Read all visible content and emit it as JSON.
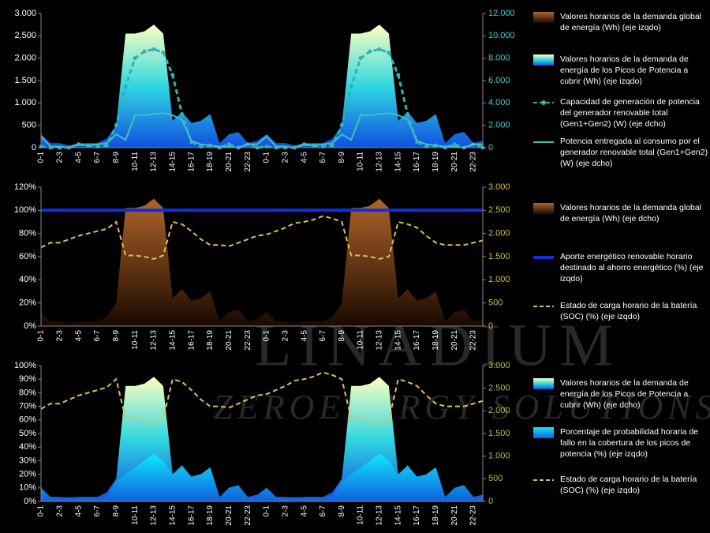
{
  "watermark": {
    "brand": "LINADIUM",
    "tagline": "ZEROENERGY SOLUTIONS"
  },
  "chart_data": [
    {
      "type": "combo",
      "categories": [
        "0-1",
        null,
        "2-3",
        null,
        "4-5",
        null,
        "6-7",
        null,
        "8-9",
        null,
        "10-11",
        null,
        "12-13",
        null,
        "14-15",
        null,
        "16-17",
        null,
        "18-19",
        null,
        "20-21",
        null,
        "22-23",
        null,
        "0-1",
        null,
        "2-3",
        null,
        "4-5",
        null,
        "6-7",
        null,
        "8-9",
        null,
        "10-11",
        null,
        "12-13",
        null,
        "14-15",
        null,
        "16-17",
        null,
        "18-19",
        null,
        "20-21",
        null,
        "22-23",
        null
      ],
      "ylim": [
        0,
        3000
      ],
      "yticks": [
        0,
        500,
        {
          "value": 1000,
          "label": "1.000"
        },
        {
          "value": 1500,
          "label": "1.500"
        },
        {
          "value": 2000,
          "label": "2.000"
        },
        {
          "value": 2500,
          "label": "2.500"
        },
        {
          "value": 3000,
          "label": "3.000"
        }
      ],
      "y2lim": [
        0,
        12000
      ],
      "y2ticks": [
        0,
        {
          "value": 2000,
          "label": "2.000"
        },
        {
          "value": 4000,
          "label": "4.000"
        },
        {
          "value": 6000,
          "label": "6.000"
        },
        {
          "value": 8000,
          "label": "8.000"
        },
        {
          "value": 10000,
          "label": "10.000"
        },
        {
          "value": 12000,
          "label": "12.000"
        }
      ],
      "y2_tick_color": "#40d0d0",
      "series": [
        {
          "name": "Valores horarios de la demanda global de energía (Wh)    (eje izqdo)",
          "mark": "area",
          "color": "#8a4a18",
          "gradient": [
            "#b0642a",
            "#1a0a00"
          ],
          "axis": "y",
          "values": [
            300,
            100,
            100,
            50,
            100,
            100,
            100,
            200,
            500,
            2550,
            2550,
            2600,
            2750,
            2550,
            600,
            800,
            550,
            600,
            750,
            100,
            300,
            350,
            100,
            150,
            300,
            100,
            100,
            50,
            100,
            100,
            100,
            200,
            500,
            2550,
            2550,
            2600,
            2750,
            2550,
            600,
            800,
            550,
            600,
            750,
            100,
            300,
            350,
            100,
            150
          ]
        },
        {
          "name": "Valores horarios de la demanda de energía de los Picos de Potencia a cubrir  (Wh)    (eje izqdo)",
          "mark": "area",
          "color": "#ffffc0",
          "gradient": [
            "#ffffc0",
            "#30d8e0",
            "#1050e0"
          ],
          "axis": "y",
          "values": [
            300,
            100,
            100,
            50,
            100,
            100,
            100,
            200,
            500,
            2550,
            2550,
            2600,
            2750,
            2550,
            600,
            800,
            550,
            600,
            750,
            100,
            300,
            350,
            100,
            150,
            300,
            100,
            100,
            50,
            100,
            100,
            100,
            200,
            500,
            2550,
            2550,
            2600,
            2750,
            2550,
            600,
            800,
            550,
            600,
            750,
            100,
            300,
            350,
            100,
            150
          ]
        },
        {
          "name": "Capacidad de generación de potencia del generador renovable total (Gen1+Gen2)   (W)        (eje dcho)",
          "mark": "dashed-dots",
          "color": "#30b0b8",
          "axis": "y2",
          "values": [
            100,
            0,
            0,
            0,
            300,
            200,
            100,
            200,
            2000,
            5500,
            8000,
            8600,
            8800,
            8500,
            6500,
            3000,
            500,
            100,
            200,
            0,
            300,
            0,
            300,
            0,
            100,
            0,
            0,
            0,
            300,
            200,
            100,
            200,
            2000,
            5500,
            8000,
            8600,
            8800,
            8500,
            6500,
            3000,
            500,
            100,
            200,
            0,
            300,
            0,
            300,
            0
          ]
        },
        {
          "name": "Potencia entregada al consumo por el generador renovable total (Gen1+Gen2)   (W)        (eje dcho)",
          "mark": "line",
          "color": "#40c0c0",
          "axis": "y2",
          "values": [
            1000,
            100,
            100,
            0,
            300,
            200,
            300,
            400,
            1200,
            700,
            2900,
            2900,
            3000,
            3100,
            2900,
            2500,
            600,
            300,
            200,
            100,
            100,
            0,
            300,
            300,
            1000,
            100,
            100,
            0,
            300,
            200,
            300,
            400,
            1200,
            700,
            2900,
            2900,
            3000,
            3100,
            2900,
            2500,
            600,
            300,
            200,
            100,
            100,
            0,
            300,
            300
          ]
        }
      ]
    },
    {
      "type": "combo",
      "categories": [
        "0-1",
        null,
        "2-3",
        null,
        "4-5",
        null,
        "6-7",
        null,
        "8-9",
        null,
        "10-11",
        null,
        "12-13",
        null,
        "14-15",
        null,
        "16-17",
        null,
        "18-19",
        null,
        "20-21",
        null,
        "22-23",
        null,
        "0-1",
        null,
        "2-3",
        null,
        "4-5",
        null,
        "6-7",
        null,
        "8-9",
        null,
        "10-11",
        null,
        "12-13",
        null,
        "14-15",
        null,
        "16-17",
        null,
        "18-19",
        null,
        "20-21",
        null,
        "22-23",
        null
      ],
      "ylim": [
        0,
        120
      ],
      "yticks": [
        {
          "value": 0,
          "label": "0%"
        },
        {
          "value": 20,
          "label": "20%"
        },
        {
          "value": 40,
          "label": "40%"
        },
        {
          "value": 60,
          "label": "60%"
        },
        {
          "value": 80,
          "label": "80%"
        },
        {
          "value": 100,
          "label": "100%"
        },
        {
          "value": 120,
          "label": "120%"
        }
      ],
      "y2lim": [
        0,
        3000
      ],
      "y2ticks": [
        0,
        500,
        {
          "value": 1000,
          "label": "1.000"
        },
        {
          "value": 1500,
          "label": "1.500"
        },
        {
          "value": 2000,
          "label": "2.000"
        },
        {
          "value": 2500,
          "label": "2.500"
        },
        {
          "value": 3000,
          "label": "3.000"
        }
      ],
      "y2_tick_color": "#d0c040",
      "series": [
        {
          "name": "Valores horarios de la demanda global de energía (Wh)    (eje dcho)",
          "mark": "area",
          "color": "#8a4a18",
          "gradient": [
            "#b0642a",
            "#1a0a00"
          ],
          "axis": "y2",
          "values": [
            300,
            100,
            100,
            50,
            100,
            100,
            100,
            200,
            500,
            2550,
            2550,
            2600,
            2750,
            2550,
            600,
            800,
            550,
            600,
            750,
            100,
            300,
            350,
            100,
            150,
            300,
            100,
            100,
            50,
            100,
            100,
            100,
            200,
            500,
            2550,
            2550,
            2600,
            2750,
            2550,
            600,
            800,
            550,
            600,
            750,
            100,
            300,
            350,
            100,
            150
          ]
        },
        {
          "name": "Aporte energético renovable horario destinado al ahorro energético (%)    (eje izqdo)",
          "mark": "thick-line",
          "color": "#1030e0",
          "axis": "y",
          "values": [
            100,
            100,
            100,
            100,
            100,
            100,
            100,
            100,
            100,
            100,
            100,
            100,
            100,
            100,
            100,
            100,
            100,
            100,
            100,
            100,
            100,
            100,
            100,
            100,
            100,
            100,
            100,
            100,
            100,
            100,
            100,
            100,
            100,
            100,
            100,
            100,
            100,
            100,
            100,
            100,
            100,
            100,
            100,
            100,
            100,
            100,
            100,
            100
          ]
        },
        {
          "name": "Estado de carga horario de la batería (SOC)   (%)      (eje izqdo)",
          "mark": "dashed",
          "color": "#e0c050",
          "axis": "y",
          "values": [
            68,
            72,
            72,
            75,
            78,
            80,
            82,
            84,
            90,
            61,
            61,
            60,
            58,
            61,
            90,
            88,
            82,
            75,
            70,
            70,
            69,
            72,
            75,
            78,
            79,
            82,
            85,
            89,
            90,
            92,
            95,
            93,
            90,
            61,
            61,
            60,
            58,
            60,
            90,
            88,
            85,
            78,
            72,
            70,
            70,
            70,
            72,
            74
          ]
        }
      ]
    },
    {
      "type": "combo",
      "categories": [
        "0-1",
        null,
        "2-3",
        null,
        "4-5",
        null,
        "6-7",
        null,
        "8-9",
        null,
        "10-11",
        null,
        "12-13",
        null,
        "14-15",
        null,
        "16-17",
        null,
        "18-19",
        null,
        "20-21",
        null,
        "22-23",
        null,
        "0-1",
        null,
        "2-3",
        null,
        "4-5",
        null,
        "6-7",
        null,
        "8-9",
        null,
        "10-11",
        null,
        "12-13",
        null,
        "14-15",
        null,
        "16-17",
        null,
        "18-19",
        null,
        "20-21",
        null,
        "22-23",
        null
      ],
      "ylim": [
        0,
        100
      ],
      "yticks": [
        {
          "value": 0,
          "label": "0%"
        },
        {
          "value": 10,
          "label": "10%"
        },
        {
          "value": 20,
          "label": "20%"
        },
        {
          "value": 30,
          "label": "30%"
        },
        {
          "value": 40,
          "label": "40%"
        },
        {
          "value": 50,
          "label": "50%"
        },
        {
          "value": 60,
          "label": "60%"
        },
        {
          "value": 70,
          "label": "70%"
        },
        {
          "value": 80,
          "label": "80%"
        },
        {
          "value": 90,
          "label": "90%"
        },
        {
          "value": 100,
          "label": "100%"
        }
      ],
      "y2lim": [
        0,
        3000
      ],
      "y2ticks": [
        0,
        500,
        {
          "value": 1000,
          "label": "1.000"
        },
        {
          "value": 1500,
          "label": "1.500"
        },
        {
          "value": 2000,
          "label": "2.000"
        },
        {
          "value": 2500,
          "label": "2.500"
        },
        {
          "value": 3000,
          "label": "3.000"
        }
      ],
      "y2_tick_color": "#b0c040",
      "series": [
        {
          "name": "Valores horarios de la demanda de energía de los Picos de Potencia a cubrir (Wh)      (eje dcho)",
          "mark": "area",
          "color": "#ffffc0",
          "gradient": [
            "#ffffc0",
            "#30d8e0",
            "#1050e0"
          ],
          "axis": "y2",
          "values": [
            300,
            100,
            100,
            50,
            100,
            100,
            100,
            200,
            500,
            2550,
            2550,
            2600,
            2750,
            2550,
            600,
            800,
            550,
            600,
            750,
            100,
            300,
            350,
            100,
            150,
            300,
            100,
            100,
            50,
            100,
            100,
            100,
            200,
            500,
            2550,
            2550,
            2600,
            2750,
            2550,
            600,
            800,
            550,
            600,
            750,
            100,
            300,
            350,
            100,
            150
          ]
        },
        {
          "name": "Porcentaje de probabilidad horaria de fallo en la cobertura de los picos de potencia (%)          (eje izqdo)",
          "mark": "area",
          "color": "#10e8f8",
          "gradient": [
            "#10e8f8",
            "#1060e0"
          ],
          "axis": "y",
          "values": [
            10,
            3,
            3,
            3,
            3,
            3,
            3,
            3,
            15,
            20,
            25,
            30,
            35,
            30,
            20,
            25,
            18,
            20,
            25,
            3,
            10,
            12,
            3,
            3,
            10,
            3,
            3,
            3,
            3,
            3,
            3,
            3,
            15,
            20,
            25,
            30,
            35,
            30,
            20,
            25,
            18,
            20,
            25,
            3,
            10,
            12,
            3,
            3
          ]
        },
        {
          "name": "Estado de carga horario de la batería (SOC)   (%)      (eje izqdo)",
          "mark": "dashed",
          "color": "#e0c050",
          "axis": "y",
          "values": [
            68,
            72,
            72,
            75,
            78,
            80,
            82,
            84,
            90,
            61,
            61,
            60,
            58,
            61,
            90,
            88,
            82,
            75,
            70,
            70,
            69,
            72,
            75,
            78,
            79,
            82,
            85,
            89,
            90,
            92,
            95,
            93,
            90,
            61,
            61,
            60,
            58,
            60,
            90,
            88,
            85,
            78,
            72,
            70,
            70,
            70,
            72,
            74
          ]
        }
      ]
    }
  ]
}
